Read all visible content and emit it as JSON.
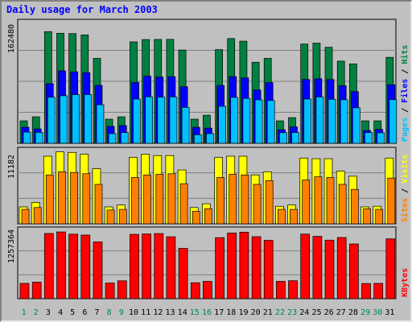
{
  "chart_data": {
    "type": "bar",
    "title": "Daily usage for March 2003",
    "categories": [
      "1",
      "2",
      "3",
      "4",
      "5",
      "6",
      "7",
      "8",
      "9",
      "10",
      "11",
      "12",
      "13",
      "14",
      "15",
      "16",
      "17",
      "18",
      "19",
      "20",
      "21",
      "22",
      "23",
      "24",
      "25",
      "26",
      "27",
      "28",
      "29",
      "30",
      "31"
    ],
    "weekend_days": [
      "1",
      "2",
      "8",
      "9",
      "15",
      "16",
      "22",
      "23",
      "29",
      "30"
    ],
    "colors": {
      "hits": "#008040",
      "files": "#0000ff",
      "pages": "#00c0ff",
      "visits": "#ffff00",
      "sites": "#ff8000",
      "kbytes": "#ff0000",
      "weekday_label": "#000000",
      "weekend_label": "#00805c",
      "title": "#0000ff",
      "gridline": "#808080"
    },
    "panels": [
      {
        "name": "hits-files-pages",
        "ymax": 162480,
        "ytick_label": "162480",
        "right_label": [
          "Pages",
          "Files",
          "Hits"
        ],
        "series": [
          {
            "name": "Hits",
            "values": [
              30630,
              36100,
              152300,
              150100,
              149600,
              147800,
              115800,
              32900,
              36100,
              138300,
              141500,
              141600,
              141700,
              127200,
              32900,
              38300,
              127800,
              142800,
              139300,
              110600,
              115800,
              30630,
              35000,
              135400,
              136600,
              131000,
              112100,
              108200,
              30630,
              30630,
              117300
            ]
          },
          {
            "name": "Files",
            "values": [
              21900,
              19600,
              81400,
              98800,
              97500,
              96300,
              79000,
              23000,
              24100,
              83000,
              91600,
              90300,
              90800,
              77200,
              21900,
              20800,
              78900,
              91000,
              89100,
              72800,
              82800,
              18600,
              22400,
              87200,
              88100,
              87000,
              78500,
              70500,
              17500,
              19000,
              79900
            ]
          },
          {
            "name": "Pages",
            "values": [
              15300,
              14900,
              62800,
              64900,
              66300,
              66400,
              52600,
              13200,
              14600,
              60400,
              63400,
              62900,
              63200,
              49100,
              11600,
              13200,
              50500,
              62600,
              61100,
              59300,
              58400,
              14500,
              14700,
              60400,
              63200,
              60000,
              59400,
              48400,
              14700,
              14300,
              59500
            ]
          }
        ]
      },
      {
        "name": "visits-sites",
        "ymax": 11182,
        "ytick_label": "11182",
        "right_label": [
          "Sites",
          "Visits"
        ],
        "series": [
          {
            "name": "Visits",
            "values": [
              2700,
              3400,
              10800,
              11500,
              11400,
              11100,
              8800,
              2700,
              3000,
              10600,
              11100,
              10900,
              10900,
              8600,
              2600,
              3200,
              10600,
              10800,
              10800,
              7800,
              8300,
              2800,
              3000,
              10500,
              10400,
              10400,
              8400,
              7600,
              2700,
              2800,
              10500
            ]
          },
          {
            "name": "Sites",
            "values": [
              2300,
              2600,
              7800,
              8300,
              8200,
              8000,
              6300,
              2200,
              2300,
              7400,
              7800,
              7900,
              8000,
              6400,
              2000,
              2400,
              7400,
              7900,
              7800,
              6300,
              6900,
              2300,
              2300,
              7000,
              7500,
              7400,
              6300,
              5500,
              2400,
              2300,
              7300
            ]
          }
        ]
      },
      {
        "name": "kbytes",
        "ymax": 1257364,
        "ytick_label": "1257364",
        "right_label": [
          "KBytes"
        ],
        "series": [
          {
            "name": "KBytes",
            "values": [
              292000,
              315000,
              1242000,
              1271000,
              1228000,
              1212000,
              1081000,
              298000,
              340000,
              1225000,
              1233000,
              1241000,
              1179000,
              958000,
              303000,
              330000,
              1163000,
              1249000,
              1266000,
              1180000,
              1111000,
              330000,
              342000,
              1230000,
              1187000,
              1114000,
              1166000,
              1042000,
              288000,
              292000,
              1139000
            ]
          }
        ]
      }
    ]
  }
}
